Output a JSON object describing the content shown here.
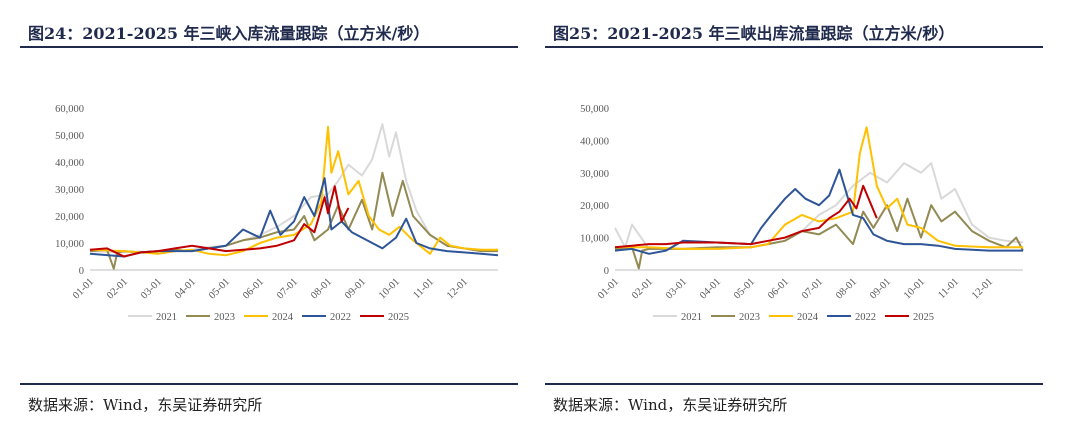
{
  "charts": [
    {
      "title": "图24：2021-2025 年三峡入库流量跟踪（立方米/秒）",
      "source": "数据来源：Wind，东吴证券研究所"
    },
    {
      "title": "图25：2021-2025 年三峡出库流量跟踪（立方米/秒）",
      "source": "数据来源：Wind，东吴证券研究所"
    }
  ],
  "chart_data": [
    {
      "type": "line",
      "title": "图24：2021-2025 年三峡入库流量跟踪（立方米/秒）",
      "xlabel": "",
      "ylabel": "",
      "ylim": [
        0,
        60000
      ],
      "yticks": [
        "0",
        "10,000",
        "20,000",
        "30,000",
        "40,000",
        "50,000",
        "60,000"
      ],
      "xticks": [
        "01-01",
        "02-01",
        "03-01",
        "04-01",
        "05-01",
        "06-01",
        "07-01",
        "08-01",
        "09-01",
        "10-01",
        "11-01",
        "12-01"
      ],
      "grid": false,
      "legend": "bottom",
      "series": [
        {
          "name": "2021",
          "color": "#d9d9d9",
          "x": [
            0,
            1,
            1.5,
            2,
            2.5,
            3,
            3.5,
            4,
            4.5,
            5,
            5.5,
            6,
            6.5,
            7,
            7.3,
            7.6,
            8,
            8.3,
            8.6,
            8.8,
            9,
            9.3,
            9.6,
            10,
            10.5,
            11,
            11.5,
            12
          ],
          "values": [
            7000,
            6500,
            6800,
            6000,
            7000,
            7500,
            8500,
            9000,
            11000,
            13000,
            16000,
            20000,
            27000,
            28000,
            33000,
            39000,
            35000,
            41000,
            54000,
            42000,
            51000,
            33000,
            22000,
            13000,
            9000,
            8000,
            7500,
            7000
          ]
        },
        {
          "name": "2023",
          "color": "#938953",
          "x": [
            0,
            0.5,
            0.7,
            0.8,
            1,
            1.5,
            2,
            2.5,
            3,
            3.5,
            4,
            4.5,
            5,
            5.5,
            6,
            6.3,
            6.6,
            7,
            7.3,
            7.6,
            8,
            8.3,
            8.6,
            8.9,
            9.2,
            9.5,
            10,
            10.5,
            11,
            11.5,
            12
          ],
          "values": [
            7000,
            7500,
            500,
            6500,
            7000,
            6500,
            7000,
            7500,
            7000,
            8000,
            9000,
            11000,
            12000,
            14000,
            15000,
            20000,
            11000,
            15000,
            24000,
            15000,
            26000,
            15000,
            36000,
            20000,
            33000,
            20000,
            13000,
            9000,
            8000,
            7000,
            7000
          ]
        },
        {
          "name": "2024",
          "color": "#ffc000",
          "x": [
            0,
            1,
            1.5,
            2,
            2.5,
            3,
            3.5,
            4,
            4.5,
            5,
            5.5,
            6,
            6.5,
            6.8,
            7,
            7.1,
            7.3,
            7.6,
            7.9,
            8.2,
            8.5,
            8.8,
            9.1,
            9.5,
            10,
            10.3,
            10.6,
            11,
            11.5,
            12
          ],
          "values": [
            7500,
            7000,
            6500,
            6000,
            7000,
            7500,
            6000,
            5500,
            7000,
            10000,
            12000,
            13000,
            17000,
            25000,
            53000,
            36000,
            44000,
            28000,
            33000,
            20000,
            15000,
            13000,
            16000,
            11000,
            6000,
            12000,
            9000,
            8000,
            7500,
            7500
          ]
        },
        {
          "name": "2022",
          "color": "#2e5597",
          "x": [
            0,
            1,
            1.5,
            2,
            2.5,
            3,
            3.5,
            4,
            4.5,
            5,
            5.3,
            5.6,
            6,
            6.3,
            6.6,
            6.9,
            7.1,
            7.4,
            7.7,
            8,
            8.3,
            8.6,
            9,
            9.3,
            9.6,
            10,
            10.5,
            11,
            11.5,
            12
          ],
          "values": [
            6000,
            5000,
            6500,
            7000,
            7000,
            7000,
            8000,
            9000,
            15000,
            12000,
            22000,
            13000,
            18000,
            27000,
            20000,
            34000,
            15000,
            18000,
            14000,
            12000,
            10000,
            8000,
            12000,
            19000,
            10000,
            8000,
            7000,
            6500,
            6000,
            5500
          ]
        },
        {
          "name": "2025",
          "color": "#c00000",
          "x": [
            0,
            0.5,
            1,
            1.5,
            2,
            2.5,
            3,
            3.5,
            4,
            4.5,
            5,
            5.5,
            6,
            6.3,
            6.6,
            6.9,
            7,
            7.2,
            7.4,
            7.6
          ],
          "values": [
            7500,
            8000,
            5000,
            6500,
            7000,
            8000,
            9000,
            8000,
            7000,
            7500,
            8000,
            9000,
            11000,
            17000,
            14000,
            27000,
            21000,
            31000,
            18000,
            23000
          ]
        }
      ]
    },
    {
      "type": "line",
      "title": "图25：2021-2025 年三峡出库流量跟踪（立方米/秒）",
      "xlabel": "",
      "ylabel": "",
      "ylim": [
        0,
        50000
      ],
      "yticks": [
        "0",
        "10,000",
        "20,000",
        "30,000",
        "40,000",
        "50,000"
      ],
      "xticks": [
        "01-01",
        "02-01",
        "03-01",
        "04-01",
        "05-01",
        "06-01",
        "07-01",
        "08-01",
        "09-01",
        "10-01",
        "11-01",
        "12-01"
      ],
      "grid": false,
      "legend": "bottom",
      "series": [
        {
          "name": "2021",
          "color": "#d9d9d9",
          "x": [
            0,
            0.3,
            0.5,
            1,
            2,
            3,
            4,
            4.5,
            5,
            5.5,
            6,
            6.5,
            7,
            7.5,
            8,
            8.5,
            9,
            9.3,
            9.6,
            10,
            10.5,
            11,
            11.5,
            12
          ],
          "values": [
            13000,
            7000,
            14000,
            6500,
            6500,
            6500,
            7000,
            8000,
            9000,
            12000,
            17000,
            20000,
            26000,
            30000,
            27000,
            33000,
            30000,
            33000,
            22000,
            25000,
            14000,
            10000,
            9000,
            8500
          ]
        },
        {
          "name": "2023",
          "color": "#938953",
          "x": [
            0,
            0.5,
            0.7,
            0.8,
            1,
            1.5,
            2,
            3,
            4,
            4.5,
            5,
            5.5,
            6,
            6.5,
            7,
            7.3,
            7.6,
            8,
            8.3,
            8.6,
            9,
            9.3,
            9.6,
            10,
            10.5,
            11,
            11.5,
            11.8,
            12
          ],
          "values": [
            6500,
            7000,
            500,
            6000,
            6500,
            6500,
            6500,
            7000,
            7000,
            8000,
            9000,
            12000,
            11000,
            14000,
            8000,
            18000,
            13000,
            20000,
            12000,
            22000,
            10000,
            20000,
            15000,
            18000,
            12000,
            9000,
            7000,
            10000,
            6000
          ]
        },
        {
          "name": "2024",
          "color": "#ffc000",
          "x": [
            0,
            1,
            2,
            3,
            4,
            4.5,
            5,
            5.5,
            6,
            6.5,
            7,
            7.2,
            7.4,
            7.7,
            8,
            8.3,
            8.6,
            9,
            9.5,
            10,
            11,
            12
          ],
          "values": [
            7000,
            7000,
            6500,
            6500,
            7000,
            8000,
            14000,
            17000,
            15000,
            16000,
            18000,
            36000,
            44000,
            26000,
            19000,
            22000,
            14000,
            13000,
            9000,
            7500,
            7000,
            7000
          ]
        },
        {
          "name": "2022",
          "color": "#2e5597",
          "x": [
            0,
            0.5,
            1,
            1.5,
            2,
            3,
            4,
            4.3,
            4.6,
            5,
            5.3,
            5.6,
            6,
            6.3,
            6.6,
            7,
            7.3,
            7.6,
            8,
            8.5,
            9,
            9.5,
            10,
            11,
            12
          ],
          "values": [
            6000,
            6500,
            5000,
            6000,
            9000,
            8500,
            8000,
            13000,
            17000,
            22000,
            25000,
            22000,
            20000,
            23000,
            31000,
            17000,
            16000,
            11000,
            9000,
            8000,
            8000,
            7500,
            6500,
            6000,
            6000
          ]
        },
        {
          "name": "2025",
          "color": "#c00000",
          "x": [
            0,
            0.5,
            1,
            1.5,
            2,
            3,
            4,
            4.5,
            5,
            5.5,
            6,
            6.3,
            6.6,
            6.9,
            7.1,
            7.3,
            7.5,
            7.7
          ],
          "values": [
            7000,
            7500,
            8000,
            8000,
            8500,
            8500,
            8000,
            9000,
            10000,
            12000,
            13000,
            16000,
            18000,
            22000,
            19000,
            26000,
            21000,
            16000
          ]
        }
      ]
    }
  ]
}
